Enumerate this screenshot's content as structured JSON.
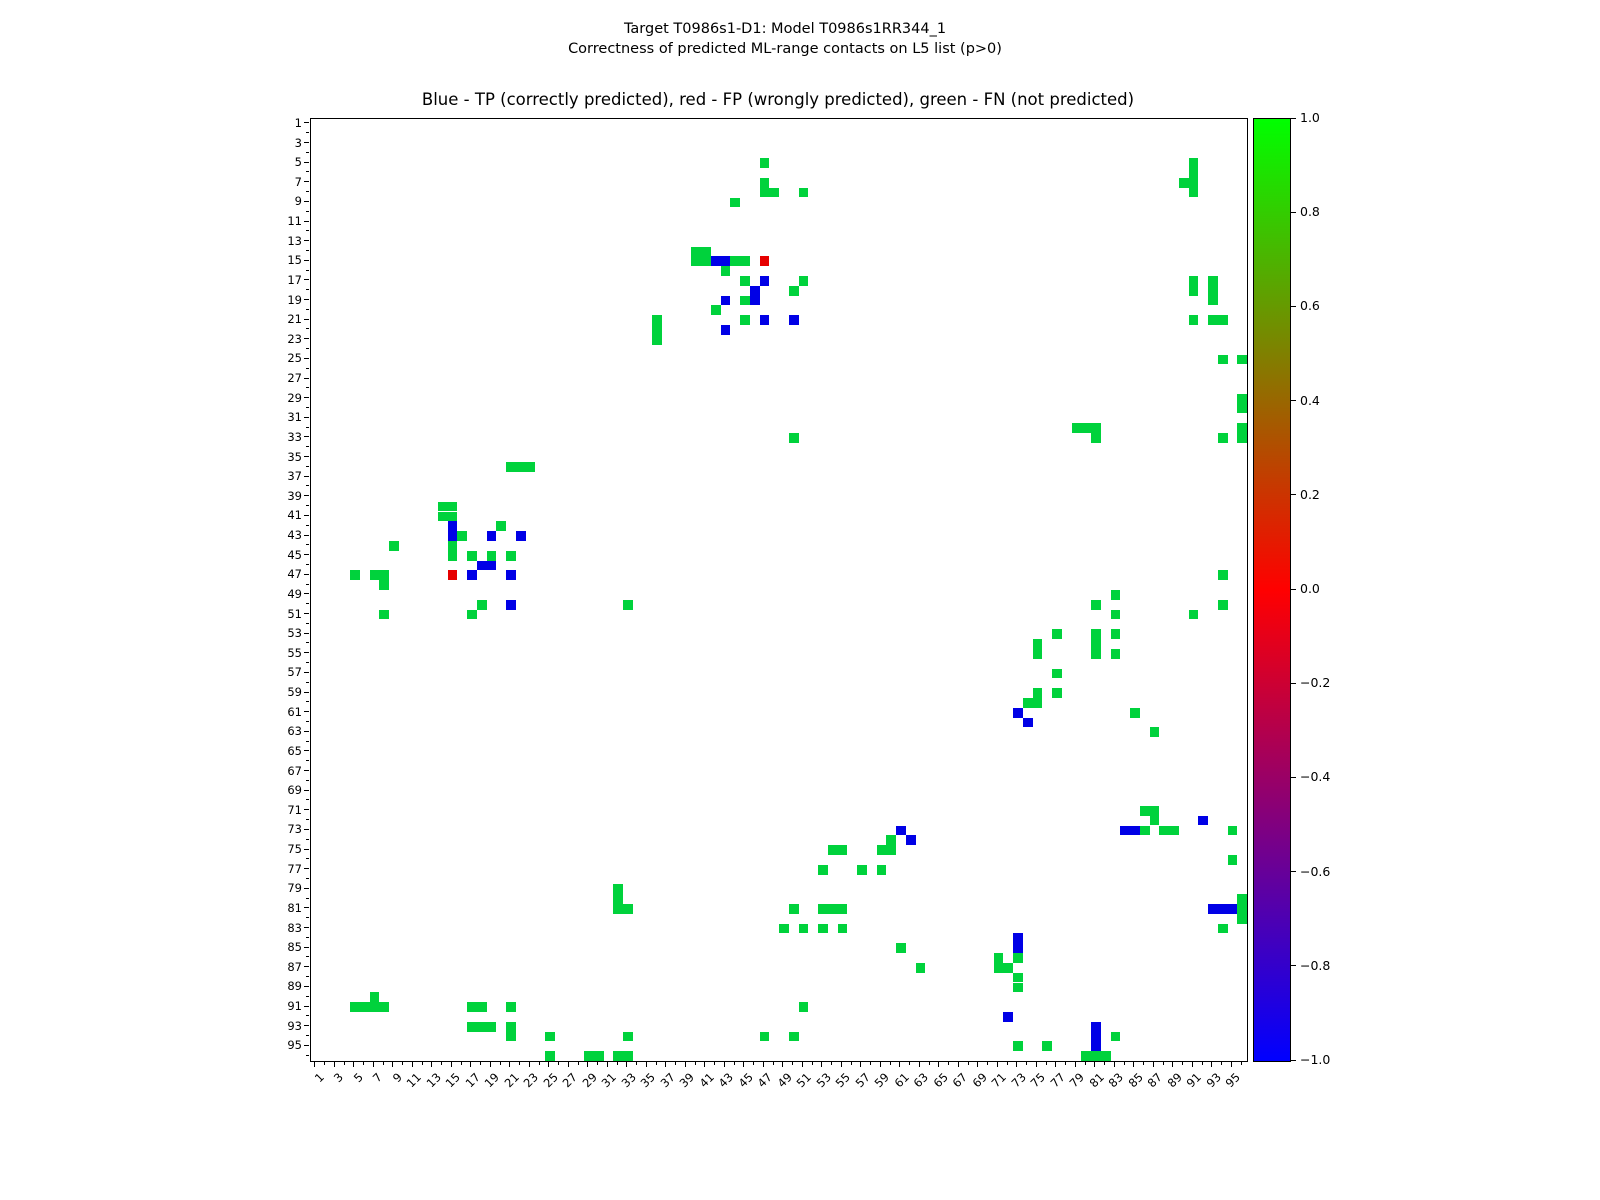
{
  "suptitle_line1": "Target T0986s1-D1: Model T0986s1RR344_1",
  "suptitle_line2": "Correctness of predicted ML-range contacts on L5 list (p>0)",
  "axes_title": "Blue - TP (correctly predicted), red - FP (wrongly predicted), green - FN (not predicted)",
  "chart_data": {
    "type": "heatmap",
    "n": 96,
    "axis_range": [
      1,
      96
    ],
    "xlabel": "",
    "ylabel": "",
    "symmetric": true,
    "grid": false,
    "x_tick_labels": [
      "1",
      "3",
      "5",
      "7",
      "9",
      "11",
      "13",
      "15",
      "17",
      "19",
      "21",
      "23",
      "25",
      "27",
      "29",
      "31",
      "33",
      "35",
      "37",
      "39",
      "41",
      "43",
      "45",
      "47",
      "49",
      "51",
      "53",
      "55",
      "57",
      "59",
      "61",
      "63",
      "65",
      "67",
      "69",
      "71",
      "73",
      "75",
      "77",
      "79",
      "81",
      "83",
      "85",
      "87",
      "89",
      "91",
      "93",
      "95"
    ],
    "y_tick_labels": [
      "1",
      "3",
      "5",
      "7",
      "9",
      "11",
      "13",
      "15",
      "17",
      "19",
      "21",
      "23",
      "25",
      "27",
      "29",
      "31",
      "33",
      "35",
      "37",
      "39",
      "41",
      "43",
      "45",
      "47",
      "49",
      "51",
      "53",
      "55",
      "57",
      "59",
      "61",
      "63",
      "65",
      "67",
      "69",
      "71",
      "73",
      "75",
      "77",
      "79",
      "81",
      "83",
      "85",
      "87",
      "89",
      "91",
      "93",
      "95"
    ],
    "legend": {
      "TP": "Blue - TP (correctly predicted)",
      "FP": "red - FP (wrongly predicted)",
      "FN": "green - FN (not predicted)"
    },
    "colors": {
      "TP": "#0000e6",
      "FP": "#e60000",
      "FN": "#00d23c"
    },
    "colorbar": {
      "tick_labels": [
        "1.0",
        "0.8",
        "0.6",
        "0.4",
        "0.2",
        "0.0",
        "−0.2",
        "−0.4",
        "−0.6",
        "−0.8",
        "−1.0"
      ],
      "vmin": -1.0,
      "vmax": 1.0,
      "gradient_bottom_to_top": [
        "#0000ff",
        "#800080",
        "#ff0000",
        "#808000",
        "#00ff00"
      ]
    },
    "contacts": [
      [
        5,
        47,
        "FN"
      ],
      [
        7,
        47,
        "FN"
      ],
      [
        8,
        47,
        "FN"
      ],
      [
        8,
        48,
        "FN"
      ],
      [
        8,
        51,
        "FN"
      ],
      [
        9,
        44,
        "FN"
      ],
      [
        5,
        91,
        "FN"
      ],
      [
        6,
        91,
        "FN"
      ],
      [
        7,
        90,
        "FN"
      ],
      [
        7,
        91,
        "FN"
      ],
      [
        8,
        91,
        "FN"
      ],
      [
        14,
        40,
        "FN"
      ],
      [
        14,
        41,
        "FN"
      ],
      [
        15,
        40,
        "FN"
      ],
      [
        15,
        41,
        "FN"
      ],
      [
        15,
        44,
        "FN"
      ],
      [
        15,
        45,
        "FN"
      ],
      [
        16,
        43,
        "FN"
      ],
      [
        17,
        45,
        "FN"
      ],
      [
        17,
        51,
        "FN"
      ],
      [
        18,
        50,
        "FN"
      ],
      [
        19,
        45,
        "FN"
      ],
      [
        20,
        42,
        "FN"
      ],
      [
        21,
        45,
        "FN"
      ],
      [
        21,
        36,
        "FN"
      ],
      [
        22,
        36,
        "FN"
      ],
      [
        23,
        36,
        "FN"
      ],
      [
        17,
        91,
        "FN"
      ],
      [
        18,
        91,
        "FN"
      ],
      [
        17,
        93,
        "FN"
      ],
      [
        18,
        93,
        "FN"
      ],
      [
        19,
        93,
        "FN"
      ],
      [
        21,
        91,
        "FN"
      ],
      [
        21,
        93,
        "FN"
      ],
      [
        21,
        94,
        "FN"
      ],
      [
        25,
        94,
        "FN"
      ],
      [
        25,
        96,
        "FN"
      ],
      [
        29,
        96,
        "FN"
      ],
      [
        30,
        96,
        "FN"
      ],
      [
        32,
        96,
        "FN"
      ],
      [
        33,
        94,
        "FN"
      ],
      [
        33,
        96,
        "FN"
      ],
      [
        33,
        50,
        "FN"
      ],
      [
        32,
        79,
        "FN"
      ],
      [
        32,
        80,
        "FN"
      ],
      [
        32,
        81,
        "FN"
      ],
      [
        33,
        81,
        "FN"
      ],
      [
        47,
        94,
        "FN"
      ],
      [
        49,
        83,
        "FN"
      ],
      [
        50,
        81,
        "FN"
      ],
      [
        50,
        94,
        "FN"
      ],
      [
        51,
        83,
        "FN"
      ],
      [
        51,
        91,
        "FN"
      ],
      [
        53,
        77,
        "FN"
      ],
      [
        53,
        81,
        "FN"
      ],
      [
        53,
        83,
        "FN"
      ],
      [
        54,
        75,
        "FN"
      ],
      [
        54,
        81,
        "FN"
      ],
      [
        55,
        75,
        "FN"
      ],
      [
        55,
        81,
        "FN"
      ],
      [
        55,
        83,
        "FN"
      ],
      [
        57,
        77,
        "FN"
      ],
      [
        59,
        75,
        "FN"
      ],
      [
        59,
        77,
        "FN"
      ],
      [
        60,
        74,
        "FN"
      ],
      [
        60,
        75,
        "FN"
      ],
      [
        61,
        85,
        "FN"
      ],
      [
        63,
        87,
        "FN"
      ],
      [
        71,
        86,
        "FN"
      ],
      [
        71,
        87,
        "FN"
      ],
      [
        72,
        87,
        "FN"
      ],
      [
        73,
        86,
        "FN"
      ],
      [
        73,
        88,
        "FN"
      ],
      [
        73,
        89,
        "FN"
      ],
      [
        73,
        95,
        "FN"
      ],
      [
        76,
        95,
        "FN"
      ],
      [
        80,
        96,
        "FN"
      ],
      [
        81,
        96,
        "FN"
      ],
      [
        82,
        96,
        "FN"
      ],
      [
        83,
        94,
        "FN"
      ],
      [
        15,
        42,
        "TP"
      ],
      [
        15,
        43,
        "TP"
      ],
      [
        17,
        47,
        "TP"
      ],
      [
        18,
        46,
        "TP"
      ],
      [
        19,
        43,
        "TP"
      ],
      [
        19,
        46,
        "TP"
      ],
      [
        21,
        47,
        "TP"
      ],
      [
        21,
        50,
        "TP"
      ],
      [
        22,
        43,
        "TP"
      ],
      [
        61,
        73,
        "TP"
      ],
      [
        62,
        74,
        "TP"
      ],
      [
        72,
        92,
        "TP"
      ],
      [
        73,
        84,
        "TP"
      ],
      [
        73,
        85,
        "TP"
      ],
      [
        81,
        93,
        "TP"
      ],
      [
        81,
        94,
        "TP"
      ],
      [
        81,
        95,
        "TP"
      ],
      [
        15,
        47,
        "FP"
      ]
    ]
  }
}
